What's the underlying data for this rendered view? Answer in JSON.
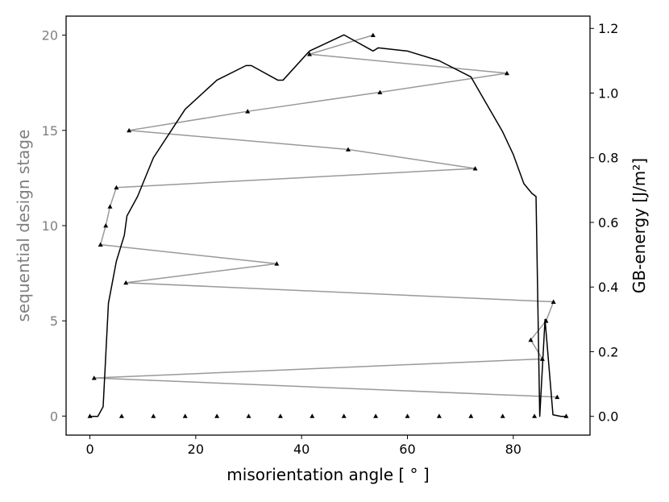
{
  "chart_data": {
    "type": "line",
    "xlabel": "misorientation angle [ ° ]",
    "ylabel_left": "sequential design stage",
    "ylabel_right": "GB-energy [J/m²]",
    "xlim": [
      -4.5,
      94.5
    ],
    "ylim_left": [
      -1,
      21
    ],
    "ylim_right": [
      -0.058,
      1.238
    ],
    "x_ticks": [
      {
        "value": 0,
        "label": "0"
      },
      {
        "value": 20,
        "label": "20"
      },
      {
        "value": 40,
        "label": "40"
      },
      {
        "value": 60,
        "label": "60"
      },
      {
        "value": 80,
        "label": "80"
      }
    ],
    "y_left_ticks": [
      {
        "value": 0,
        "label": "0"
      },
      {
        "value": 5,
        "label": "5"
      },
      {
        "value": 10,
        "label": "10"
      },
      {
        "value": 15,
        "label": "15"
      },
      {
        "value": 20,
        "label": "20"
      }
    ],
    "y_right_ticks": [
      {
        "value": 0.0,
        "label": "0.0"
      },
      {
        "value": 0.2,
        "label": "0.2"
      },
      {
        "value": 0.4,
        "label": "0.4"
      },
      {
        "value": 0.6,
        "label": "0.6"
      },
      {
        "value": 0.8,
        "label": "0.8"
      },
      {
        "value": 1.0,
        "label": "1.0"
      },
      {
        "value": 1.2,
        "label": "1.2"
      }
    ],
    "colors": {
      "stage_line": "#999999",
      "energy_line": "#000000",
      "markers": "#000000",
      "left_axis_label": "#808080"
    },
    "series": [
      {
        "axis": "left",
        "style": "markers-only",
        "x": [
          0,
          6,
          12,
          18,
          24,
          30,
          36,
          42,
          48,
          54,
          60,
          66,
          72,
          78,
          84,
          90
        ],
        "y": [
          0,
          0,
          0,
          0,
          0,
          0,
          0,
          0,
          0,
          0,
          0,
          0,
          0,
          0,
          0,
          0
        ]
      },
      {
        "axis": "left",
        "style": "line-markers",
        "x": [
          88.3,
          0.8,
          85.5,
          83.3,
          86.2,
          87.6,
          6.8,
          35.3,
          2.0,
          3.0,
          3.8,
          5.0,
          72.8,
          48.8,
          7.4,
          29.8,
          54.8,
          78.8,
          41.5,
          53.5
        ],
        "y": [
          1,
          2,
          3,
          4,
          5,
          6,
          7,
          8,
          9,
          10,
          11,
          12,
          13,
          14,
          15,
          16,
          17,
          18,
          19,
          20
        ]
      },
      {
        "axis": "right",
        "style": "line",
        "x": [
          0,
          1.5,
          2.5,
          3.5,
          5.0,
          6.5,
          7.0,
          9.0,
          12.0,
          18.0,
          24.0,
          29.5,
          30.5,
          35.5,
          36.5,
          41.5,
          48.0,
          53.5,
          54.5,
          60.0,
          66.0,
          72.0,
          78.0,
          80.0,
          82.0,
          83.5,
          84.3,
          85.0,
          86.0,
          87.5,
          89.0,
          90.0
        ],
        "y": [
          0,
          0,
          0.03,
          0.35,
          0.48,
          0.56,
          0.62,
          0.68,
          0.8,
          0.95,
          1.04,
          1.085,
          1.085,
          1.04,
          1.04,
          1.13,
          1.18,
          1.13,
          1.14,
          1.13,
          1.1,
          1.05,
          0.88,
          0.81,
          0.72,
          0.69,
          0.68,
          0,
          0.3,
          0.005,
          0,
          0
        ]
      }
    ]
  }
}
